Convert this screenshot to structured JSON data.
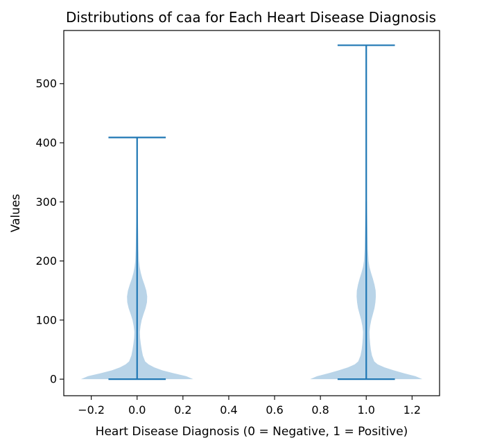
{
  "chart_data": {
    "type": "violin",
    "title": "Distributions of caa for Each Heart Disease Diagnosis",
    "xlabel": "Heart Disease Diagnosis (0 = Negative, 1 = Positive)",
    "ylabel": "Values",
    "xlim": [
      -0.32,
      1.32
    ],
    "ylim": [
      -28,
      590
    ],
    "x_ticks": [
      -0.2,
      0.0,
      0.2,
      0.4,
      0.6,
      0.8,
      1.0,
      1.2
    ],
    "x_tick_labels": [
      "−0.2",
      "0.0",
      "0.2",
      "0.4",
      "0.6",
      "0.8",
      "1.0",
      "1.2"
    ],
    "y_ticks": [
      0,
      100,
      200,
      300,
      400,
      500
    ],
    "y_tick_labels": [
      "0",
      "100",
      "200",
      "300",
      "400",
      "500"
    ],
    "grid": false,
    "colors": {
      "body": "#b9d4e8",
      "lines": "#1f77b4",
      "axes": "#000000"
    },
    "series": [
      {
        "position": 0,
        "min": 0,
        "max": 409,
        "density_profile": [
          [
            0,
            0.245
          ],
          [
            5,
            0.215
          ],
          [
            10,
            0.16
          ],
          [
            15,
            0.11
          ],
          [
            20,
            0.075
          ],
          [
            25,
            0.05
          ],
          [
            30,
            0.035
          ],
          [
            40,
            0.025
          ],
          [
            50,
            0.02
          ],
          [
            60,
            0.016
          ],
          [
            70,
            0.013
          ],
          [
            80,
            0.012
          ],
          [
            90,
            0.015
          ],
          [
            100,
            0.02
          ],
          [
            110,
            0.028
          ],
          [
            120,
            0.037
          ],
          [
            130,
            0.043
          ],
          [
            140,
            0.044
          ],
          [
            150,
            0.04
          ],
          [
            160,
            0.032
          ],
          [
            170,
            0.023
          ],
          [
            180,
            0.016
          ],
          [
            190,
            0.011
          ],
          [
            200,
            0.008
          ],
          [
            220,
            0.006
          ],
          [
            240,
            0.005
          ],
          [
            260,
            0.004
          ],
          [
            280,
            0.003
          ],
          [
            300,
            0.002
          ],
          [
            310,
            0.0
          ]
        ]
      },
      {
        "position": 1,
        "min": 0,
        "max": 565,
        "density_profile": [
          [
            0,
            0.245
          ],
          [
            5,
            0.215
          ],
          [
            10,
            0.165
          ],
          [
            15,
            0.12
          ],
          [
            20,
            0.08
          ],
          [
            25,
            0.05
          ],
          [
            30,
            0.035
          ],
          [
            40,
            0.025
          ],
          [
            50,
            0.02
          ],
          [
            60,
            0.017
          ],
          [
            70,
            0.015
          ],
          [
            80,
            0.014
          ],
          [
            90,
            0.017
          ],
          [
            100,
            0.022
          ],
          [
            110,
            0.029
          ],
          [
            120,
            0.036
          ],
          [
            130,
            0.04
          ],
          [
            140,
            0.042
          ],
          [
            150,
            0.041
          ],
          [
            160,
            0.036
          ],
          [
            170,
            0.029
          ],
          [
            180,
            0.021
          ],
          [
            190,
            0.014
          ],
          [
            200,
            0.01
          ],
          [
            220,
            0.007
          ],
          [
            240,
            0.006
          ],
          [
            260,
            0.005
          ],
          [
            280,
            0.004
          ],
          [
            300,
            0.003
          ],
          [
            310,
            0.0
          ]
        ]
      }
    ]
  }
}
